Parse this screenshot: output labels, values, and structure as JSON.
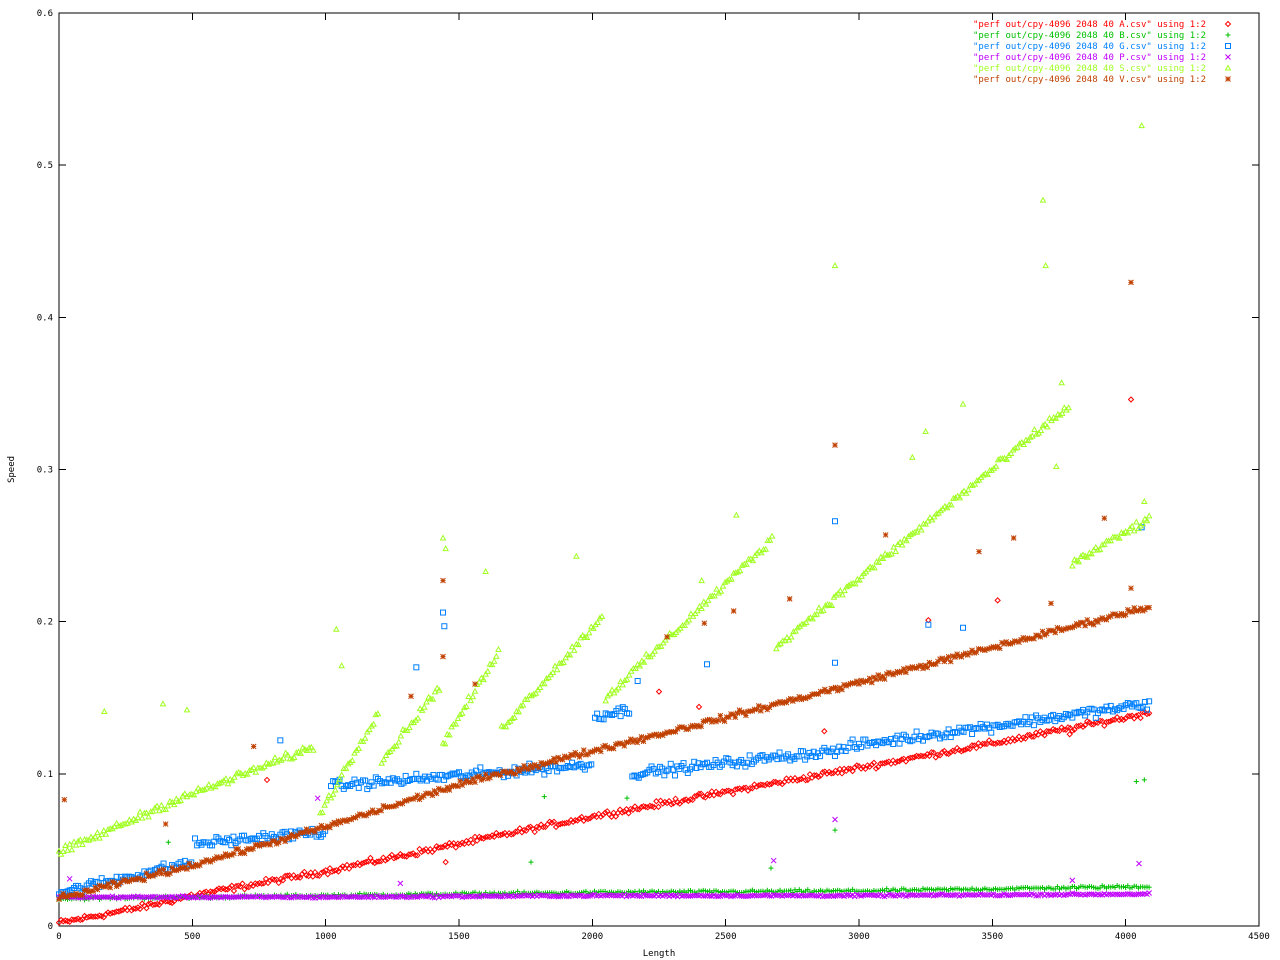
{
  "chart_data": {
    "type": "scatter",
    "title": "",
    "xlabel": "Length",
    "ylabel": "Speed",
    "xlim": [
      0,
      4500
    ],
    "ylim": [
      0,
      0.6
    ],
    "x_ticks": [
      "0",
      "500",
      "1000",
      "1500",
      "2000",
      "2500",
      "3000",
      "3500",
      "4000",
      "4500"
    ],
    "y_ticks": [
      "0",
      "0.1",
      "0.2",
      "0.3",
      "0.4",
      "0.5",
      "0.6"
    ],
    "x_tick_values": [
      0,
      500,
      1000,
      1500,
      2000,
      2500,
      3000,
      3500,
      4000,
      4500
    ],
    "y_tick_values": [
      0,
      0.1,
      0.2,
      0.3,
      0.4,
      0.5,
      0.6
    ],
    "grid": false,
    "legend_position": "top-right",
    "series": [
      {
        "name": "\"perf out/cpy-4096 2048 40 A.csv\" using 1:2",
        "color": "#ff0000",
        "marker": "diamond",
        "base": [
          [
            0,
            0.002
          ],
          [
            300,
            0.012
          ],
          [
            500,
            0.02
          ],
          [
            1000,
            0.036
          ],
          [
            1500,
            0.054
          ],
          [
            2000,
            0.072
          ],
          [
            2500,
            0.088
          ],
          [
            3000,
            0.104
          ],
          [
            3500,
            0.12
          ],
          [
            4090,
            0.14
          ]
        ],
        "noise": 0.003,
        "outliers": [
          [
            780,
            0.096
          ],
          [
            1450,
            0.042
          ],
          [
            1610,
            0.101
          ],
          [
            2250,
            0.154
          ],
          [
            2400,
            0.144
          ],
          [
            3260,
            0.201
          ],
          [
            4020,
            0.346
          ],
          [
            3520,
            0.214
          ],
          [
            2870,
            0.128
          ],
          [
            3790,
            0.126
          ]
        ]
      },
      {
        "name": "\"perf out/cpy-4096 2048 40 B.csv\" using 1:2",
        "color": "#00c000",
        "marker": "plus",
        "base": [
          [
            0,
            0.018
          ],
          [
            1000,
            0.02
          ],
          [
            2000,
            0.022
          ],
          [
            3000,
            0.023
          ],
          [
            4090,
            0.026
          ]
        ],
        "noise": 0.0015,
        "outliers": [
          [
            410,
            0.055
          ],
          [
            1820,
            0.085
          ],
          [
            1770,
            0.042
          ],
          [
            2130,
            0.084
          ],
          [
            2670,
            0.038
          ],
          [
            2910,
            0.063
          ],
          [
            4040,
            0.095
          ],
          [
            4070,
            0.096
          ]
        ]
      },
      {
        "name": "\"perf out/cpy-4096 2048 40 G.csv\" using 1:2",
        "color": "#0080ff",
        "marker": "square",
        "segments": [
          {
            "from": 0,
            "to": 500,
            "y0": 0.022,
            "y1": 0.042
          },
          {
            "from": 510,
            "to": 1000,
            "y0": 0.054,
            "y1": 0.062
          },
          {
            "from": 1020,
            "to": 2000,
            "y0": 0.092,
            "y1": 0.106
          },
          {
            "from": 2010,
            "to": 2140,
            "y0": 0.138,
            "y1": 0.142
          },
          {
            "from": 2150,
            "to": 2950,
            "y0": 0.1,
            "y1": 0.116
          },
          {
            "from": 2960,
            "to": 4090,
            "y0": 0.118,
            "y1": 0.146
          }
        ],
        "noise": 0.005,
        "outliers": [
          [
            830,
            0.122
          ],
          [
            1340,
            0.17
          ],
          [
            1440,
            0.206
          ],
          [
            1445,
            0.197
          ],
          [
            2170,
            0.161
          ],
          [
            2430,
            0.172
          ],
          [
            2910,
            0.266
          ],
          [
            2910,
            0.173
          ],
          [
            3260,
            0.198
          ],
          [
            3390,
            0.196
          ],
          [
            4060,
            0.262
          ]
        ]
      },
      {
        "name": "\"perf out/cpy-4096 2048 40 P.csv\" using 1:2",
        "color": "#c000ff",
        "marker": "cross",
        "base": [
          [
            0,
            0.019
          ],
          [
            1000,
            0.019
          ],
          [
            2000,
            0.02
          ],
          [
            3000,
            0.02
          ],
          [
            4090,
            0.021
          ]
        ],
        "noise": 0.001,
        "outliers": [
          [
            40,
            0.031
          ],
          [
            970,
            0.084
          ],
          [
            1280,
            0.028
          ],
          [
            2680,
            0.043
          ],
          [
            2910,
            0.07
          ],
          [
            4050,
            0.041
          ],
          [
            3800,
            0.03
          ]
        ]
      },
      {
        "name": "\"perf out/cpy-4096 2048 40 S.csv\" using 1:2",
        "color": "#a0ff20",
        "marker": "triangle",
        "segments": [
          {
            "from": 0,
            "to": 480,
            "y0": 0.048,
            "y1": 0.086
          },
          {
            "from": 490,
            "to": 960,
            "y0": 0.086,
            "y1": 0.118
          },
          {
            "from": 980,
            "to": 1200,
            "y0": 0.074,
            "y1": 0.142
          },
          {
            "from": 1210,
            "to": 1430,
            "y0": 0.108,
            "y1": 0.158
          },
          {
            "from": 1440,
            "to": 1650,
            "y0": 0.12,
            "y1": 0.18
          },
          {
            "from": 1660,
            "to": 2040,
            "y0": 0.13,
            "y1": 0.204
          },
          {
            "from": 2050,
            "to": 2680,
            "y0": 0.15,
            "y1": 0.255
          },
          {
            "from": 2690,
            "to": 3790,
            "y0": 0.184,
            "y1": 0.342
          },
          {
            "from": 3800,
            "to": 4090,
            "y0": 0.238,
            "y1": 0.268
          }
        ],
        "noise": 0.004,
        "outliers": [
          [
            170,
            0.141
          ],
          [
            390,
            0.146
          ],
          [
            480,
            0.142
          ],
          [
            1040,
            0.195
          ],
          [
            1060,
            0.171
          ],
          [
            1440,
            0.255
          ],
          [
            1450,
            0.248
          ],
          [
            1600,
            0.233
          ],
          [
            1940,
            0.243
          ],
          [
            2410,
            0.227
          ],
          [
            2540,
            0.27
          ],
          [
            2910,
            0.434
          ],
          [
            3250,
            0.325
          ],
          [
            3390,
            0.343
          ],
          [
            3690,
            0.477
          ],
          [
            3700,
            0.434
          ],
          [
            3760,
            0.357
          ],
          [
            3740,
            0.302
          ],
          [
            3200,
            0.308
          ],
          [
            4060,
            0.526
          ],
          [
            4070,
            0.279
          ]
        ]
      },
      {
        "name": "\"perf out/cpy-4096 2048 40 V.csv\" using 1:2",
        "color": "#c04000",
        "marker": "star",
        "base": [
          [
            0,
            0.018
          ],
          [
            500,
            0.04
          ],
          [
            1000,
            0.065
          ],
          [
            1500,
            0.093
          ],
          [
            2000,
            0.115
          ],
          [
            2500,
            0.137
          ],
          [
            3000,
            0.16
          ],
          [
            3500,
            0.183
          ],
          [
            4090,
            0.21
          ]
        ],
        "noise": 0.003,
        "outliers": [
          [
            20,
            0.083
          ],
          [
            400,
            0.067
          ],
          [
            730,
            0.118
          ],
          [
            1320,
            0.151
          ],
          [
            1440,
            0.227
          ],
          [
            1440,
            0.177
          ],
          [
            1560,
            0.159
          ],
          [
            2280,
            0.19
          ],
          [
            2420,
            0.199
          ],
          [
            2530,
            0.207
          ],
          [
            2740,
            0.215
          ],
          [
            2910,
            0.316
          ],
          [
            3100,
            0.257
          ],
          [
            3450,
            0.246
          ],
          [
            3580,
            0.255
          ],
          [
            4020,
            0.423
          ],
          [
            4020,
            0.222
          ],
          [
            3920,
            0.268
          ],
          [
            3720,
            0.212
          ]
        ]
      }
    ]
  }
}
